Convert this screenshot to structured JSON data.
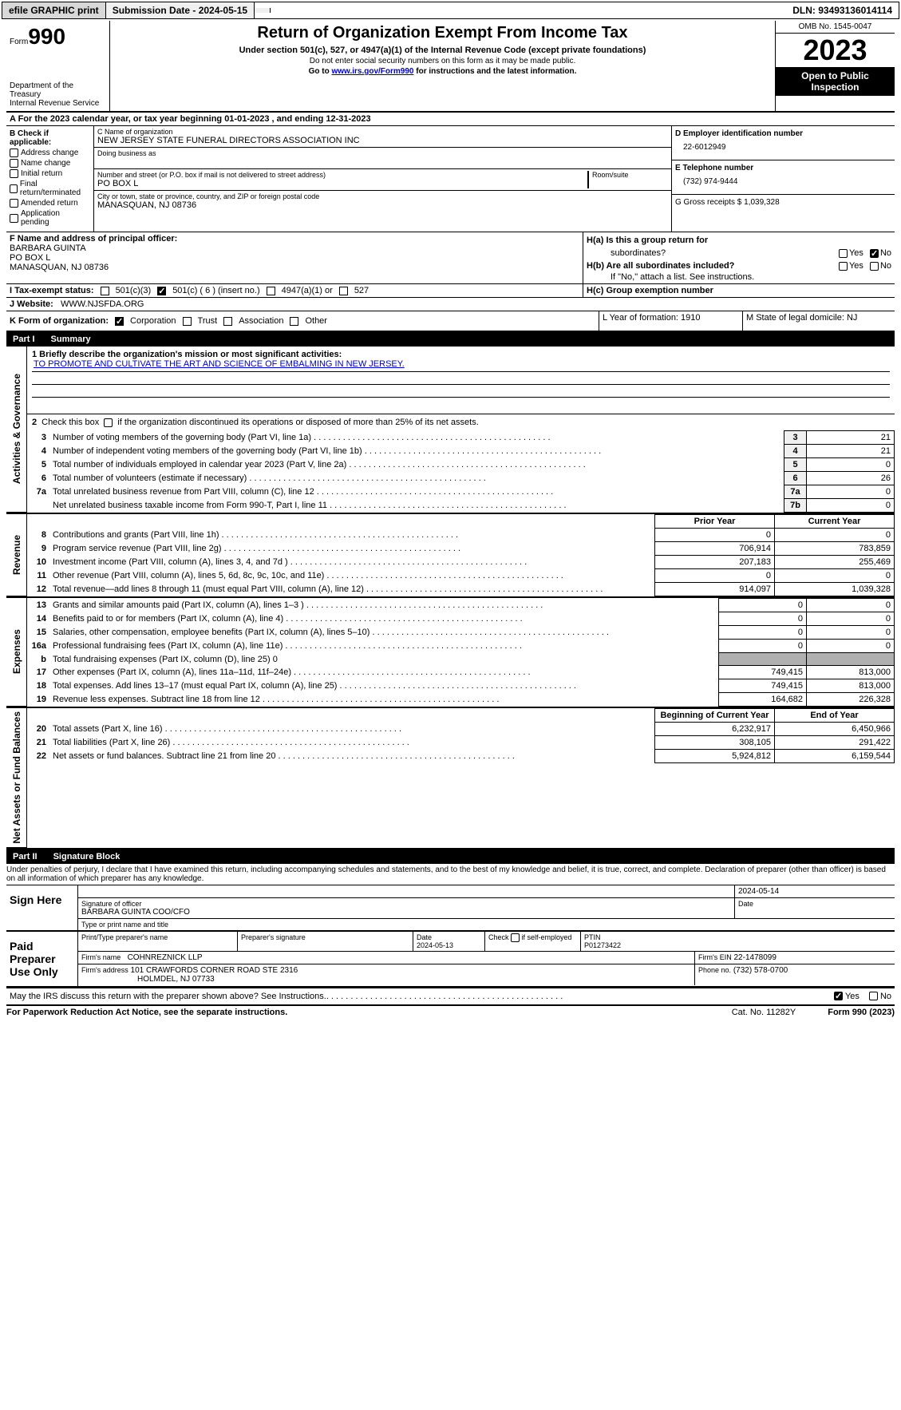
{
  "topbar": {
    "efile": "efile GRAPHIC print",
    "sub_lbl": "Submission Date - 2024-05-15",
    "dln": "DLN: 93493136014114"
  },
  "header": {
    "form_prefix": "Form",
    "form_num": "990",
    "dept": "Department of the Treasury\nInternal Revenue Service",
    "title": "Return of Organization Exempt From Income Tax",
    "subtitle": "Under section 501(c), 527, or 4947(a)(1) of the Internal Revenue Code (except private foundations)",
    "note1": "Do not enter social security numbers on this form as it may be made public.",
    "note2_pre": "Go to ",
    "note2_link": "www.irs.gov/Form990",
    "note2_post": " for instructions and the latest information.",
    "omb": "OMB No. 1545-0047",
    "year": "2023",
    "inspect": "Open to Public Inspection"
  },
  "row_a": "A   For the 2023 calendar year, or tax year beginning 01-01-2023    , and ending 12-31-2023",
  "box_b": {
    "title": "B Check if applicable:",
    "items": [
      "Address change",
      "Name change",
      "Initial return",
      "Final return/terminated",
      "Amended return",
      "Application pending"
    ]
  },
  "box_c": {
    "name_lbl": "C Name of organization",
    "name": "NEW JERSEY STATE FUNERAL DIRECTORS ASSOCIATION INC",
    "dba_lbl": "Doing business as",
    "addr_lbl": "Number and street (or P.O. box if mail is not delivered to street address)",
    "addr": "PO BOX L",
    "room_lbl": "Room/suite",
    "city_lbl": "City or town, state or province, country, and ZIP or foreign postal code",
    "city": "MANASQUAN, NJ  08736"
  },
  "box_d": {
    "lbl": "D Employer identification number",
    "val": "22-6012949"
  },
  "box_e": {
    "lbl": "E Telephone number",
    "val": "(732) 974-9444"
  },
  "box_g": {
    "lbl": "G Gross receipts $ 1,039,328"
  },
  "box_f": {
    "lbl": "F  Name and address of principal officer:",
    "l1": "BARBARA GUINTA",
    "l2": "PO BOX L",
    "l3": "MANASQUAN, NJ  08736"
  },
  "box_h": {
    "ha_lbl": "H(a)  Is this a group return for",
    "ha_sub": "subordinates?",
    "hb_lbl": "H(b)  Are all subordinates included?",
    "hb_note": "If \"No,\" attach a list. See instructions.",
    "hc_lbl": "H(c)  Group exemption number"
  },
  "box_i": {
    "lbl": "I    Tax-exempt status:",
    "o1": "501(c)(3)",
    "o2": "501(c) ( 6 ) (insert no.)",
    "o3": "4947(a)(1) or",
    "o4": "527"
  },
  "box_j": {
    "lbl": "J    Website:",
    "val": "WWW.NJSFDA.ORG"
  },
  "box_k": {
    "lbl": "K Form of organization:",
    "o1": "Corporation",
    "o2": "Trust",
    "o3": "Association",
    "o4": "Other"
  },
  "box_l": "L Year of formation: 1910",
  "box_m": "M State of legal domicile: NJ",
  "part1": {
    "num": "Part I",
    "title": "Summary"
  },
  "tabs": {
    "ag": "Activities & Governance",
    "rev": "Revenue",
    "exp": "Expenses",
    "na": "Net Assets or Fund Balances"
  },
  "q1": {
    "lbl": "1   Briefly describe the organization's mission or most significant activities:",
    "val": "TO PROMOTE AND CULTIVATE THE ART AND SCIENCE OF EMBALMING IN NEW JERSEY."
  },
  "q2": "2    Check this box        if the organization discontinued its operations or disposed of more than 25% of its net assets.",
  "gov_rows": [
    {
      "n": "3",
      "d": "Number of voting members of the governing body (Part VI, line 1a)",
      "b": "3",
      "v": "21"
    },
    {
      "n": "4",
      "d": "Number of independent voting members of the governing body (Part VI, line 1b)",
      "b": "4",
      "v": "21"
    },
    {
      "n": "5",
      "d": "Total number of individuals employed in calendar year 2023 (Part V, line 2a)",
      "b": "5",
      "v": "0"
    },
    {
      "n": "6",
      "d": "Total number of volunteers (estimate if necessary)",
      "b": "6",
      "v": "26"
    },
    {
      "n": "7a",
      "d": "Total unrelated business revenue from Part VIII, column (C), line 12",
      "b": "7a",
      "v": "0"
    },
    {
      "n": "",
      "d": "Net unrelated business taxable income from Form 990-T, Part I, line 11",
      "b": "7b",
      "v": "0"
    }
  ],
  "rev_hdr": {
    "py": "Prior Year",
    "cy": "Current Year"
  },
  "rev_rows": [
    {
      "n": "8",
      "d": "Contributions and grants (Part VIII, line 1h)",
      "p": "0",
      "c": "0"
    },
    {
      "n": "9",
      "d": "Program service revenue (Part VIII, line 2g)",
      "p": "706,914",
      "c": "783,859"
    },
    {
      "n": "10",
      "d": "Investment income (Part VIII, column (A), lines 3, 4, and 7d )",
      "p": "207,183",
      "c": "255,469"
    },
    {
      "n": "11",
      "d": "Other revenue (Part VIII, column (A), lines 5, 6d, 8c, 9c, 10c, and 11e)",
      "p": "0",
      "c": "0"
    },
    {
      "n": "12",
      "d": "Total revenue—add lines 8 through 11 (must equal Part VIII, column (A), line 12)",
      "p": "914,097",
      "c": "1,039,328"
    }
  ],
  "exp_rows": [
    {
      "n": "13",
      "d": "Grants and similar amounts paid (Part IX, column (A), lines 1–3 )",
      "p": "0",
      "c": "0"
    },
    {
      "n": "14",
      "d": "Benefits paid to or for members (Part IX, column (A), line 4)",
      "p": "0",
      "c": "0"
    },
    {
      "n": "15",
      "d": "Salaries, other compensation, employee benefits (Part IX, column (A), lines 5–10)",
      "p": "0",
      "c": "0"
    },
    {
      "n": "16a",
      "d": "Professional fundraising fees (Part IX, column (A), line 11e)",
      "p": "0",
      "c": "0"
    },
    {
      "n": "b",
      "d": "Total fundraising expenses (Part IX, column (D), line 25) 0",
      "p": "gray",
      "c": "gray"
    },
    {
      "n": "17",
      "d": "Other expenses (Part IX, column (A), lines 11a–11d, 11f–24e)",
      "p": "749,415",
      "c": "813,000"
    },
    {
      "n": "18",
      "d": "Total expenses. Add lines 13–17 (must equal Part IX, column (A), line 25)",
      "p": "749,415",
      "c": "813,000"
    },
    {
      "n": "19",
      "d": "Revenue less expenses. Subtract line 18 from line 12",
      "p": "164,682",
      "c": "226,328"
    }
  ],
  "na_hdr": {
    "b": "Beginning of Current Year",
    "e": "End of Year"
  },
  "na_rows": [
    {
      "n": "20",
      "d": "Total assets (Part X, line 16)",
      "p": "6,232,917",
      "c": "6,450,966"
    },
    {
      "n": "21",
      "d": "Total liabilities (Part X, line 26)",
      "p": "308,105",
      "c": "291,422"
    },
    {
      "n": "22",
      "d": "Net assets or fund balances. Subtract line 21 from line 20",
      "p": "5,924,812",
      "c": "6,159,544"
    }
  ],
  "part2": {
    "num": "Part II",
    "title": "Signature Block"
  },
  "sig": {
    "intro": "Under penalties of perjury, I declare that I have examined this return, including accompanying schedules and statements, and to the best of my knowledge and belief, it is true, correct, and complete. Declaration of preparer (other than officer) is based on all information of which preparer has any knowledge.",
    "here": "Sign Here",
    "date": "2024-05-14",
    "sig_of": "Signature of officer",
    "name": "BARBARA GUINTA  COO/CFO",
    "name_lbl": "Type or print name and title",
    "date_lbl": "Date",
    "paid": "Paid Preparer Use Only",
    "pt_lbl": "Print/Type preparer's name",
    "ps_lbl": "Preparer's signature",
    "pdate_lbl": "Date",
    "pdate": "2024-05-13",
    "self_lbl": "Check         if self-employed",
    "ptin_lbl": "PTIN",
    "ptin": "P01273422",
    "firm_lbl": "Firm's name",
    "firm": "COHNREZNICK LLP",
    "fein_lbl": "Firm's EIN",
    "fein": "22-1478099",
    "faddr_lbl": "Firm's address",
    "faddr1": "101 CRAWFORDS CORNER ROAD STE 2316",
    "faddr2": "HOLMDEL, NJ  07733",
    "phone_lbl": "Phone no.",
    "phone": "(732) 578-0700"
  },
  "discuss": "May the IRS discuss this return with the preparer shown above? See Instructions.",
  "yes": "Yes",
  "no": "No",
  "footer": {
    "l": "For Paperwork Reduction Act Notice, see the separate instructions.",
    "m": "Cat. No. 11282Y",
    "r_pre": "Form ",
    "r_num": "990",
    "r_post": " (2023)"
  }
}
